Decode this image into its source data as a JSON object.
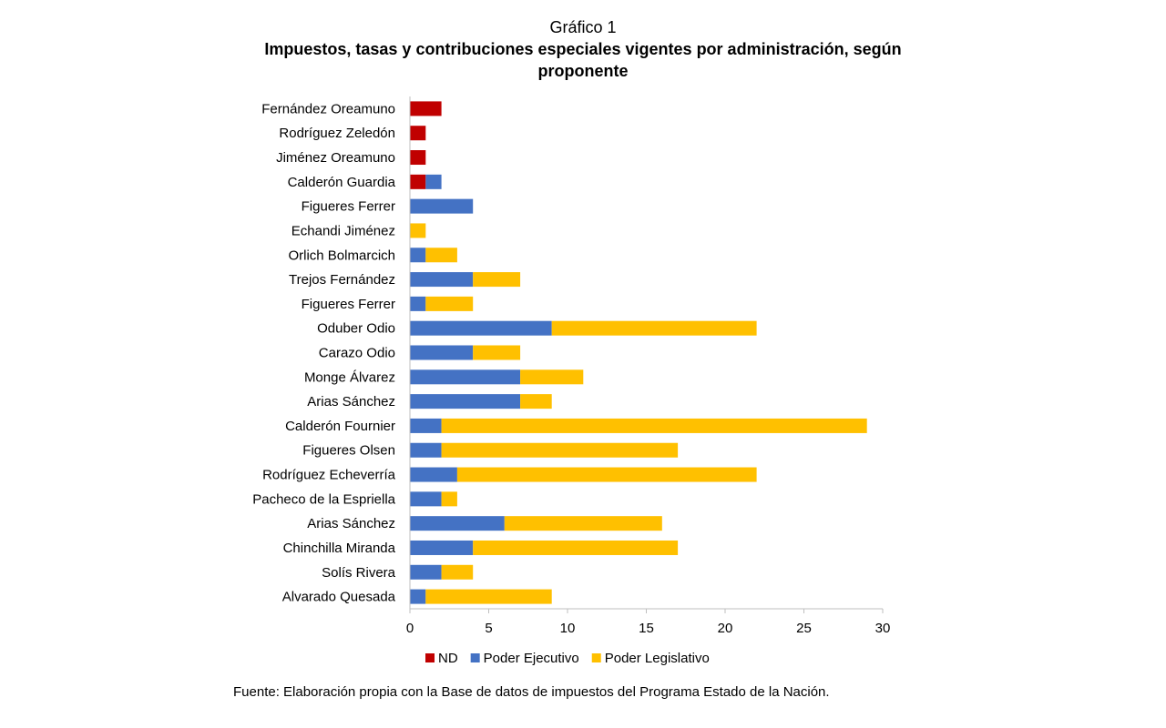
{
  "header": {
    "number": "Gráfico 1",
    "title": "Impuestos, tasas y contribuciones especiales vigentes por administración, según proponente"
  },
  "source": "Fuente: Elaboración propia con la Base de datos de impuestos del Programa Estado de la Nación.",
  "chart_data": {
    "type": "bar",
    "orientation": "horizontal",
    "stacked": true,
    "categories": [
      "Fernández Oreamuno",
      "Rodríguez Zeledón",
      "Jiménez Oreamuno",
      "Calderón Guardia",
      "Figueres Ferrer",
      "Echandi Jiménez",
      "Orlich Bolmarcich",
      "Trejos Fernández",
      "Figueres Ferrer",
      "Oduber Odio",
      "Carazo Odio",
      "Monge Álvarez",
      "Arias Sánchez",
      "Calderón Fournier",
      "Figueres Olsen",
      "Rodríguez Echeverría",
      "Pacheco de la Espriella",
      "Arias Sánchez",
      "Chinchilla Miranda",
      "Solís Rivera",
      "Alvarado Quesada"
    ],
    "series": [
      {
        "name": "ND",
        "color": "#C00000",
        "values": [
          2,
          1,
          1,
          1,
          0,
          0,
          0,
          0,
          0,
          0,
          0,
          0,
          0,
          0,
          0,
          0,
          0,
          0,
          0,
          0,
          0
        ]
      },
      {
        "name": "Poder Ejecutivo",
        "color": "#4472C4",
        "values": [
          0,
          0,
          0,
          1,
          4,
          0,
          1,
          4,
          1,
          9,
          4,
          7,
          7,
          2,
          2,
          3,
          2,
          6,
          4,
          2,
          1
        ]
      },
      {
        "name": "Poder Legislativo",
        "color": "#FFC000",
        "values": [
          0,
          0,
          0,
          0,
          0,
          1,
          2,
          3,
          3,
          13,
          3,
          4,
          2,
          27,
          15,
          19,
          1,
          10,
          13,
          2,
          8
        ]
      }
    ],
    "xlim": [
      0,
      30
    ],
    "xticks": [
      "0",
      "5",
      "10",
      "15",
      "20",
      "25",
      "30"
    ],
    "legend_position": "bottom",
    "grid": false
  }
}
